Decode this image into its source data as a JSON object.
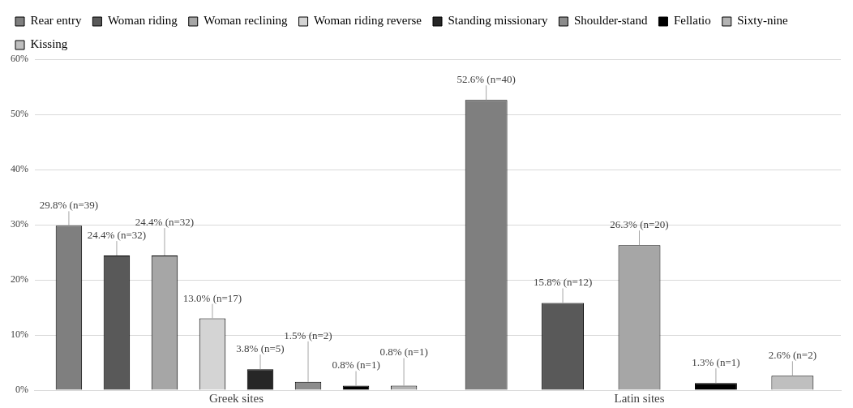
{
  "chart_data": {
    "type": "bar",
    "categories": [
      "Greek sites",
      "Latin sites"
    ],
    "series": [
      {
        "name": "Rear entry",
        "color": "#7f7f7f",
        "values": [
          29.8,
          52.6
        ],
        "value_labels": [
          "29.8% (n=39)",
          "52.6% (n=40)"
        ]
      },
      {
        "name": "Woman riding",
        "color": "#595959",
        "values": [
          24.4,
          15.8
        ],
        "value_labels": [
          "24.4% (n=32)",
          "15.8% (n=12)"
        ]
      },
      {
        "name": "Woman reclining",
        "color": "#a6a6a6",
        "values": [
          24.4,
          26.3
        ],
        "value_labels": [
          "24.4% (n=32)",
          "26.3% (n=20)"
        ]
      },
      {
        "name": "Woman riding reverse",
        "color": "#d4d4d4",
        "values": [
          13.0,
          null
        ],
        "value_labels": [
          "13.0% (n=17)",
          null
        ]
      },
      {
        "name": "Standing missionary",
        "color": "#262626",
        "values": [
          3.8,
          null
        ],
        "value_labels": [
          "3.8% (n=5)",
          null
        ]
      },
      {
        "name": "Shoulder-stand",
        "color": "#8c8c8c",
        "values": [
          1.5,
          null
        ],
        "value_labels": [
          "1.5% (n=2)",
          null
        ]
      },
      {
        "name": "Fellatio",
        "color": "#000000",
        "values": [
          0.8,
          1.3
        ],
        "value_labels": [
          "0.8% (n=1)",
          "1.3% (n=1)"
        ]
      },
      {
        "name": "Sixty-nine",
        "color": "#b3b3b3",
        "values": [
          0.8,
          null
        ],
        "value_labels": [
          "0.8% (n=1)",
          null
        ]
      },
      {
        "name": "Kissing",
        "color": "#bfbfbf",
        "values": [
          null,
          2.6
        ],
        "value_labels": [
          null,
          "2.6% (n=2)"
        ]
      }
    ],
    "ylim": [
      0,
      60
    ],
    "yticks": [
      {
        "value": 0,
        "label": "0%"
      },
      {
        "value": 10,
        "label": "10%"
      },
      {
        "value": 20,
        "label": "20%"
      },
      {
        "value": 30,
        "label": "30%"
      },
      {
        "value": 40,
        "label": "40%"
      },
      {
        "value": 50,
        "label": "50%"
      },
      {
        "value": 60,
        "label": "60%"
      }
    ],
    "grid": "y",
    "legend": "top"
  }
}
